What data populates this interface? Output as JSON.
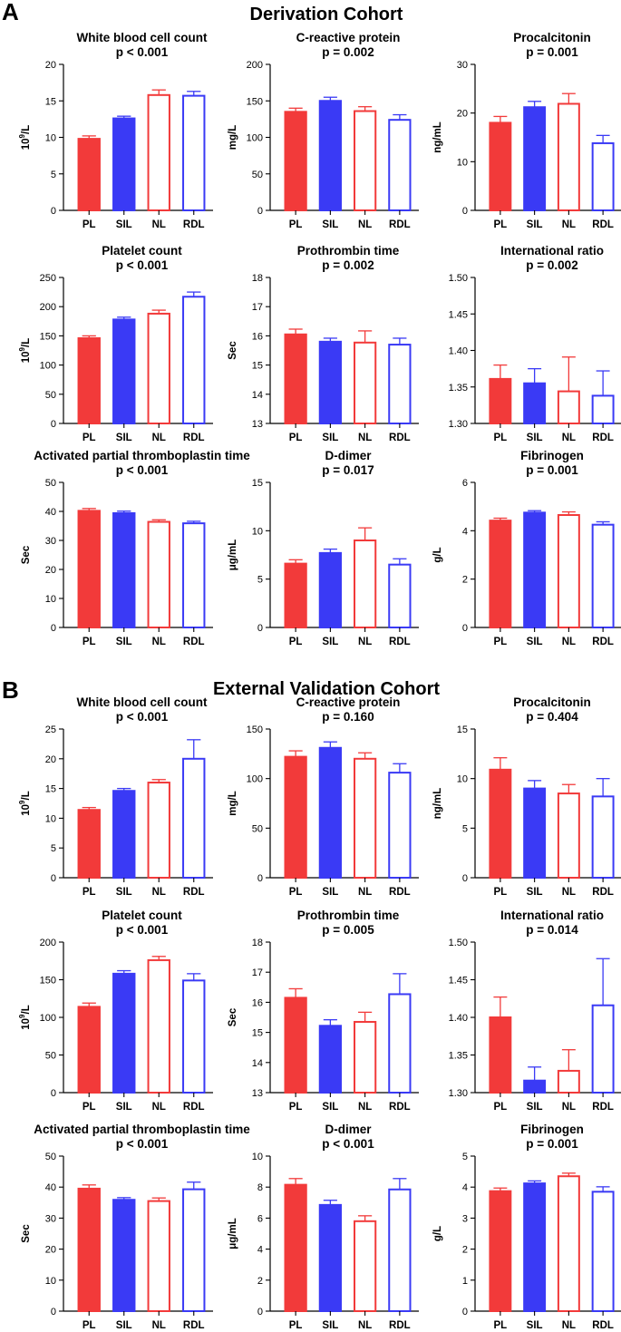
{
  "colors": {
    "red": "#f23a3a",
    "blue": "#3a3af5"
  },
  "categories": [
    "PL",
    "SIL",
    "NL",
    "RDL"
  ],
  "cohorts": [
    {
      "letter": "A",
      "title": "Derivation Cohort"
    },
    {
      "letter": "B",
      "title": "External Validation Cohort"
    }
  ],
  "chart_data": [
    {
      "cohort": "A",
      "type": "bar",
      "title": "White blood cell count",
      "pvalue": "p < 0.001",
      "ylabel": "10^9/L",
      "ylim": [
        0,
        20
      ],
      "yticks": [
        0,
        5,
        10,
        15,
        20
      ],
      "ytick_labels": [
        "0",
        "5",
        "10",
        "15",
        "20"
      ],
      "categories": [
        "PL",
        "SIL",
        "NL",
        "RDL"
      ],
      "values": [
        9.8,
        12.6,
        15.8,
        15.7
      ],
      "errors": [
        0.4,
        0.3,
        0.7,
        0.6
      ]
    },
    {
      "cohort": "A",
      "type": "bar",
      "title": "C-reactive protein",
      "pvalue": "p = 0.002",
      "ylabel": "mg/L",
      "ylim": [
        0,
        200
      ],
      "yticks": [
        0,
        50,
        100,
        150,
        200
      ],
      "ytick_labels": [
        "0",
        "50",
        "100",
        "150",
        "200"
      ],
      "categories": [
        "PL",
        "SIL",
        "NL",
        "RDL"
      ],
      "values": [
        135,
        150,
        136,
        124
      ],
      "errors": [
        5,
        5,
        6,
        7
      ]
    },
    {
      "cohort": "A",
      "type": "bar",
      "title": "Procalcitonin",
      "pvalue": "p = 0.001",
      "ylabel": "ng/mL",
      "ylim": [
        0,
        30
      ],
      "yticks": [
        0,
        10,
        20,
        30
      ],
      "ytick_labels": [
        "0",
        "10",
        "20",
        "30"
      ],
      "categories": [
        "PL",
        "SIL",
        "NL",
        "RDL"
      ],
      "values": [
        18.0,
        21.2,
        21.9,
        13.8
      ],
      "errors": [
        1.3,
        1.2,
        2.1,
        1.6
      ]
    },
    {
      "cohort": "A",
      "type": "bar",
      "title": "Platelet count",
      "pvalue": "p < 0.001",
      "ylabel": "10^9/L",
      "ylim": [
        0,
        250
      ],
      "yticks": [
        0,
        50,
        100,
        150,
        200,
        250
      ],
      "ytick_labels": [
        "0",
        "50",
        "100",
        "150",
        "200",
        "250"
      ],
      "categories": [
        "PL",
        "SIL",
        "NL",
        "RDL"
      ],
      "values": [
        146,
        178,
        188,
        217
      ],
      "errors": [
        4,
        4,
        6,
        8
      ]
    },
    {
      "cohort": "A",
      "type": "bar",
      "title": "Prothrombin time",
      "pvalue": "p = 0.002",
      "ylabel": "Sec",
      "ylim": [
        13,
        18
      ],
      "yticks": [
        13,
        14,
        15,
        16,
        17,
        18
      ],
      "ytick_labels": [
        "13",
        "14",
        "15",
        "16",
        "17",
        "18"
      ],
      "categories": [
        "PL",
        "SIL",
        "NL",
        "RDL"
      ],
      "values": [
        16.05,
        15.8,
        15.77,
        15.7
      ],
      "errors": [
        0.18,
        0.12,
        0.4,
        0.22
      ]
    },
    {
      "cohort": "A",
      "type": "bar",
      "title": "International ratio",
      "pvalue": "p = 0.002",
      "ylabel": "",
      "ylim": [
        1.3,
        1.5
      ],
      "yticks": [
        1.3,
        1.35,
        1.4,
        1.45,
        1.5
      ],
      "ytick_labels": [
        "1.30",
        "1.35",
        "1.40",
        "1.45",
        "1.50"
      ],
      "categories": [
        "PL",
        "SIL",
        "NL",
        "RDL"
      ],
      "values": [
        1.361,
        1.355,
        1.344,
        1.338
      ],
      "errors": [
        0.019,
        0.02,
        0.047,
        0.034
      ]
    },
    {
      "cohort": "A",
      "type": "bar",
      "title": "Activated partial thromboplastin time",
      "pvalue": "p < 0.001",
      "ylabel": "Sec",
      "ylim": [
        0,
        50
      ],
      "yticks": [
        0,
        10,
        20,
        30,
        40,
        50
      ],
      "ytick_labels": [
        "0",
        "10",
        "20",
        "30",
        "40",
        "50"
      ],
      "categories": [
        "PL",
        "SIL",
        "NL",
        "RDL"
      ],
      "values": [
        40.2,
        39.4,
        36.4,
        35.9
      ],
      "errors": [
        0.8,
        0.7,
        0.7,
        0.7
      ]
    },
    {
      "cohort": "A",
      "type": "bar",
      "title": "D-dimer",
      "pvalue": "p = 0.017",
      "ylabel": "μg/mL",
      "ylim": [
        0,
        15
      ],
      "yticks": [
        0,
        5,
        10,
        15
      ],
      "ytick_labels": [
        "0",
        "5",
        "10",
        "15"
      ],
      "categories": [
        "PL",
        "SIL",
        "NL",
        "RDL"
      ],
      "values": [
        6.6,
        7.7,
        9.0,
        6.5
      ],
      "errors": [
        0.4,
        0.4,
        1.3,
        0.6
      ]
    },
    {
      "cohort": "A",
      "type": "bar",
      "title": "Fibrinogen",
      "pvalue": "p = 0.001",
      "ylabel": "g/L",
      "ylim": [
        0,
        6
      ],
      "yticks": [
        0,
        2,
        4,
        6
      ],
      "ytick_labels": [
        "0",
        "2",
        "4",
        "6"
      ],
      "categories": [
        "PL",
        "SIL",
        "NL",
        "RDL"
      ],
      "values": [
        4.42,
        4.75,
        4.65,
        4.25
      ],
      "errors": [
        0.1,
        0.08,
        0.13,
        0.12
      ]
    },
    {
      "cohort": "B",
      "type": "bar",
      "title": "White blood cell count",
      "pvalue": "p < 0.001",
      "ylabel": "10^9/L",
      "ylim": [
        0,
        25
      ],
      "yticks": [
        0,
        5,
        10,
        15,
        20,
        25
      ],
      "ytick_labels": [
        "0",
        "5",
        "10",
        "15",
        "20",
        "25"
      ],
      "categories": [
        "PL",
        "SIL",
        "NL",
        "RDL"
      ],
      "values": [
        11.4,
        14.6,
        16.0,
        20.0
      ],
      "errors": [
        0.4,
        0.4,
        0.5,
        3.2
      ]
    },
    {
      "cohort": "B",
      "type": "bar",
      "title": "C-reactive protein",
      "pvalue": "p = 0.160",
      "ylabel": "mg/L",
      "ylim": [
        0,
        150
      ],
      "yticks": [
        0,
        50,
        100,
        150
      ],
      "ytick_labels": [
        "0",
        "50",
        "100",
        "150"
      ],
      "categories": [
        "PL",
        "SIL",
        "NL",
        "RDL"
      ],
      "values": [
        122,
        131,
        120,
        106
      ],
      "errors": [
        6,
        6,
        6,
        9
      ]
    },
    {
      "cohort": "B",
      "type": "bar",
      "title": "Procalcitonin",
      "pvalue": "p = 0.404",
      "ylabel": "ng/mL",
      "ylim": [
        0,
        15
      ],
      "yticks": [
        0,
        5,
        10,
        15
      ],
      "ytick_labels": [
        "0",
        "5",
        "10",
        "15"
      ],
      "categories": [
        "PL",
        "SIL",
        "NL",
        "RDL"
      ],
      "values": [
        10.9,
        9.0,
        8.5,
        8.2
      ],
      "errors": [
        1.2,
        0.8,
        0.9,
        1.8
      ]
    },
    {
      "cohort": "B",
      "type": "bar",
      "title": "Platelet count",
      "pvalue": "p < 0.001",
      "ylabel": "10^9/L",
      "ylim": [
        0,
        200
      ],
      "yticks": [
        0,
        50,
        100,
        150,
        200
      ],
      "ytick_labels": [
        "0",
        "50",
        "100",
        "150",
        "200"
      ],
      "categories": [
        "PL",
        "SIL",
        "NL",
        "RDL"
      ],
      "values": [
        114,
        158,
        176,
        149
      ],
      "errors": [
        5,
        4,
        5,
        9
      ]
    },
    {
      "cohort": "B",
      "type": "bar",
      "title": "Prothrombin time",
      "pvalue": "p = 0.005",
      "ylabel": "Sec",
      "ylim": [
        13,
        18
      ],
      "yticks": [
        13,
        14,
        15,
        16,
        17,
        18
      ],
      "ytick_labels": [
        "13",
        "14",
        "15",
        "16",
        "17",
        "18"
      ],
      "categories": [
        "PL",
        "SIL",
        "NL",
        "RDL"
      ],
      "values": [
        16.15,
        15.22,
        15.35,
        16.27
      ],
      "errors": [
        0.3,
        0.2,
        0.32,
        0.68
      ]
    },
    {
      "cohort": "B",
      "type": "bar",
      "title": "International ratio",
      "pvalue": "p = 0.014",
      "ylabel": "",
      "ylim": [
        1.3,
        1.5
      ],
      "yticks": [
        1.3,
        1.35,
        1.4,
        1.45,
        1.5
      ],
      "ytick_labels": [
        "1.30",
        "1.35",
        "1.40",
        "1.45",
        "1.50"
      ],
      "categories": [
        "PL",
        "SIL",
        "NL",
        "RDL"
      ],
      "values": [
        1.4,
        1.316,
        1.329,
        1.416
      ],
      "errors": [
        0.027,
        0.018,
        0.028,
        0.062
      ]
    },
    {
      "cohort": "B",
      "type": "bar",
      "title": "Activated partial thromboplastin time",
      "pvalue": "p < 0.001",
      "ylabel": "Sec",
      "ylim": [
        0,
        50
      ],
      "yticks": [
        0,
        10,
        20,
        30,
        40,
        50
      ],
      "ytick_labels": [
        "0",
        "10",
        "20",
        "30",
        "40",
        "50"
      ],
      "categories": [
        "PL",
        "SIL",
        "NL",
        "RDL"
      ],
      "values": [
        39.5,
        35.9,
        35.5,
        39.3
      ],
      "errors": [
        1.2,
        0.7,
        1.0,
        2.3
      ]
    },
    {
      "cohort": "B",
      "type": "bar",
      "title": "D-dimer",
      "pvalue": "p < 0.001",
      "ylabel": "μg/mL",
      "ylim": [
        0,
        10
      ],
      "yticks": [
        0,
        2,
        4,
        6,
        8,
        10
      ],
      "ytick_labels": [
        "0",
        "2",
        "4",
        "6",
        "8",
        "10"
      ],
      "categories": [
        "PL",
        "SIL",
        "NL",
        "RDL"
      ],
      "values": [
        8.15,
        6.85,
        5.8,
        7.85
      ],
      "errors": [
        0.4,
        0.3,
        0.35,
        0.7
      ]
    },
    {
      "cohort": "B",
      "type": "bar",
      "title": "Fibrinogen",
      "pvalue": "p = 0.001",
      "ylabel": "g/L",
      "ylim": [
        0,
        5
      ],
      "yticks": [
        0,
        1,
        2,
        3,
        4,
        5
      ],
      "ytick_labels": [
        "0",
        "1",
        "2",
        "3",
        "4",
        "5"
      ],
      "categories": [
        "PL",
        "SIL",
        "NL",
        "RDL"
      ],
      "values": [
        3.87,
        4.12,
        4.35,
        3.85
      ],
      "errors": [
        0.1,
        0.08,
        0.1,
        0.16
      ]
    }
  ]
}
